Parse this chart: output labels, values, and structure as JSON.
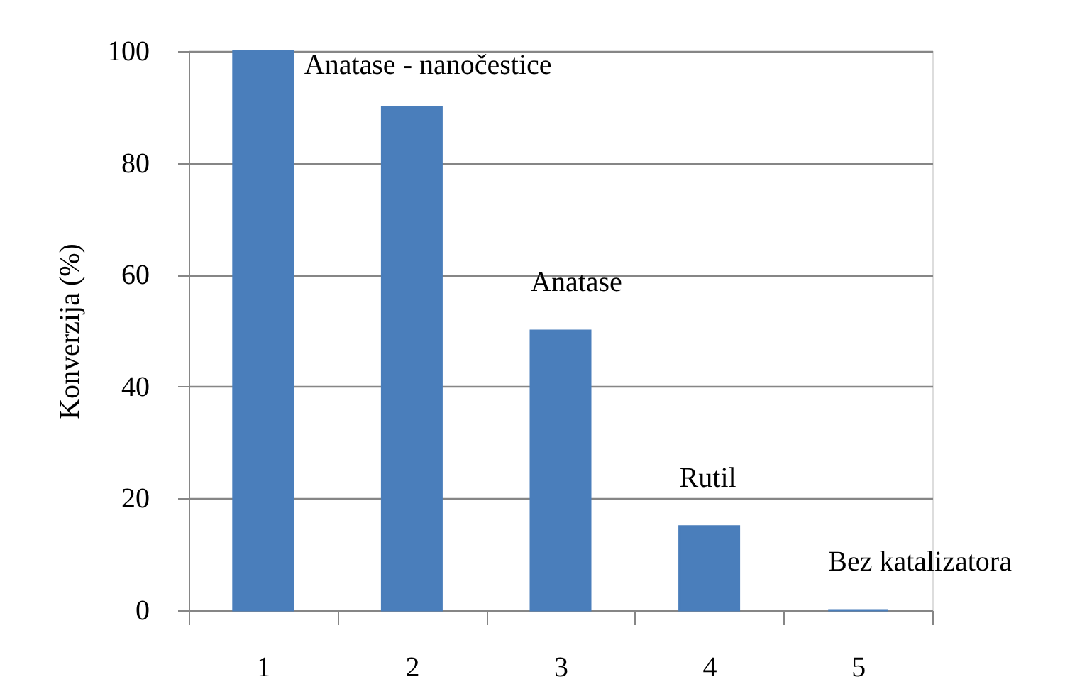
{
  "chart_data": {
    "type": "bar",
    "ylabel": "Konverzija (%)",
    "categories": [
      "1",
      "2",
      "3",
      "4",
      "5"
    ],
    "values": [
      100,
      90,
      50,
      15,
      0
    ],
    "color": "#4a7ebb",
    "ylim": [
      0,
      100
    ],
    "yticks": [
      0,
      20,
      40,
      60,
      80,
      100
    ],
    "grid": "y",
    "annotations": [
      {
        "text": "Anatase - nanočestice",
        "x": "1",
        "y": 100
      },
      {
        "text": "Anatase",
        "x": "3",
        "y": 50
      },
      {
        "text": "Rutil",
        "x": "4",
        "y": 15
      },
      {
        "text": "Bez katalizatora",
        "x": "5",
        "y": 0
      }
    ]
  }
}
